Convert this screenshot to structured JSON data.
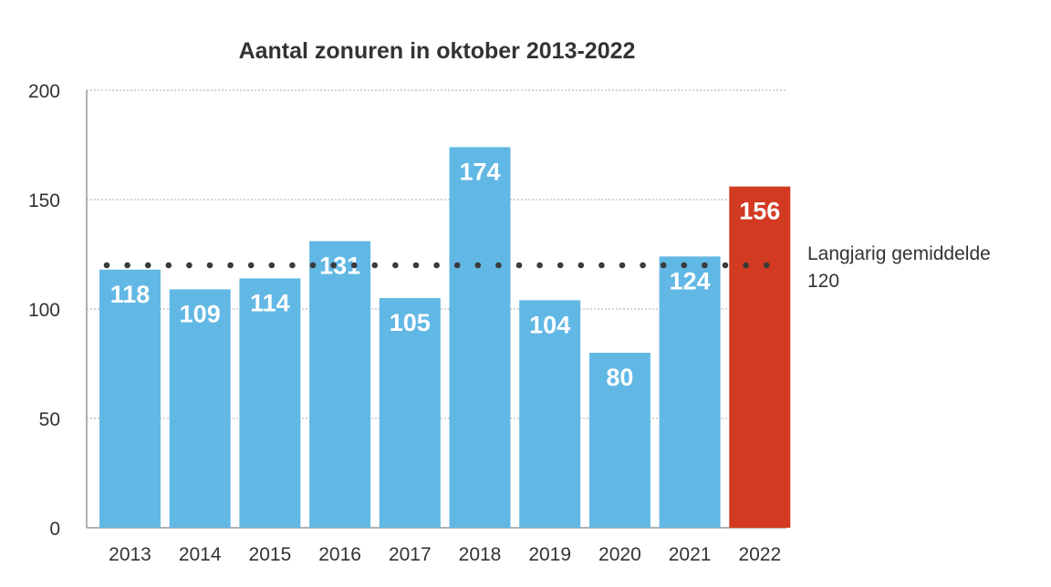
{
  "chart_data": {
    "type": "bar",
    "title": "Aantal zonuren in oktober 2013-2022",
    "xlabel": "",
    "ylabel": "",
    "categories": [
      "2013",
      "2014",
      "2015",
      "2016",
      "2017",
      "2018",
      "2019",
      "2020",
      "2021",
      "2022"
    ],
    "values": [
      118,
      109,
      114,
      131,
      105,
      174,
      104,
      80,
      124,
      156
    ],
    "ylim": [
      0,
      200
    ],
    "yticks": [
      0,
      50,
      100,
      150,
      200
    ],
    "grid": true,
    "colors": {
      "default": "#62b8e4",
      "highlight": "#d23a22",
      "reference_line": "#3a3a3a"
    },
    "highlight_category": "2022",
    "reference_line": {
      "value": 120,
      "label": "Langjarig gemiddelde",
      "value_label": "120",
      "style": "dotted"
    }
  }
}
